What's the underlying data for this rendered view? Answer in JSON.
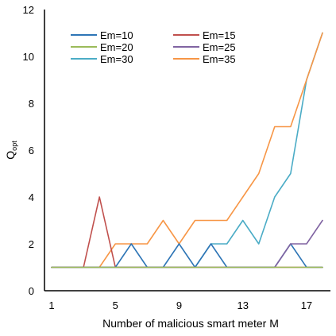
{
  "chart_data": {
    "type": "line",
    "xlabel": "Number of malicious smart meter M",
    "ylabel_main": "Q",
    "ylabel_sub": "opt",
    "x": [
      1,
      2,
      3,
      4,
      5,
      6,
      7,
      8,
      9,
      10,
      11,
      12,
      13,
      14,
      15,
      16,
      17,
      18
    ],
    "xlim": [
      1,
      18
    ],
    "ylim": [
      0,
      12
    ],
    "x_ticks": [
      1,
      5,
      9,
      13,
      17
    ],
    "y_ticks": [
      0,
      2,
      4,
      6,
      8,
      10,
      12
    ],
    "grid": false,
    "legend_position": "top-left",
    "series": [
      {
        "name": "Em=10",
        "color": "#2e75b6",
        "values": [
          1,
          1,
          1,
          1,
          1,
          2,
          1,
          1,
          2,
          1,
          2,
          1,
          1,
          1,
          1,
          2,
          1,
          1
        ]
      },
      {
        "name": "Em=15",
        "color": "#c0504d",
        "values": [
          1,
          1,
          1,
          4,
          1,
          1,
          1,
          1,
          1,
          1,
          1,
          1,
          1,
          1,
          1,
          1,
          1,
          1
        ]
      },
      {
        "name": "Em=20",
        "color": "#9bbb59",
        "values": [
          1,
          1,
          1,
          1,
          1,
          1,
          1,
          1,
          1,
          1,
          1,
          1,
          1,
          1,
          1,
          1,
          1,
          1
        ]
      },
      {
        "name": "Em=25",
        "color": "#8064a2",
        "values": [
          1,
          1,
          1,
          1,
          1,
          1,
          1,
          1,
          1,
          1,
          1,
          1,
          1,
          1,
          1,
          2,
          2,
          3
        ]
      },
      {
        "name": "Em=30",
        "color": "#4bacc6",
        "values": [
          1,
          1,
          1,
          1,
          1,
          1,
          1,
          1,
          1,
          1,
          2,
          2,
          3,
          2,
          4,
          5,
          9,
          11
        ]
      },
      {
        "name": "Em=35",
        "color": "#f79646",
        "values": [
          1,
          1,
          1,
          1,
          2,
          2,
          2,
          3,
          2,
          3,
          3,
          3,
          4,
          5,
          7,
          7,
          9,
          11
        ]
      }
    ]
  }
}
